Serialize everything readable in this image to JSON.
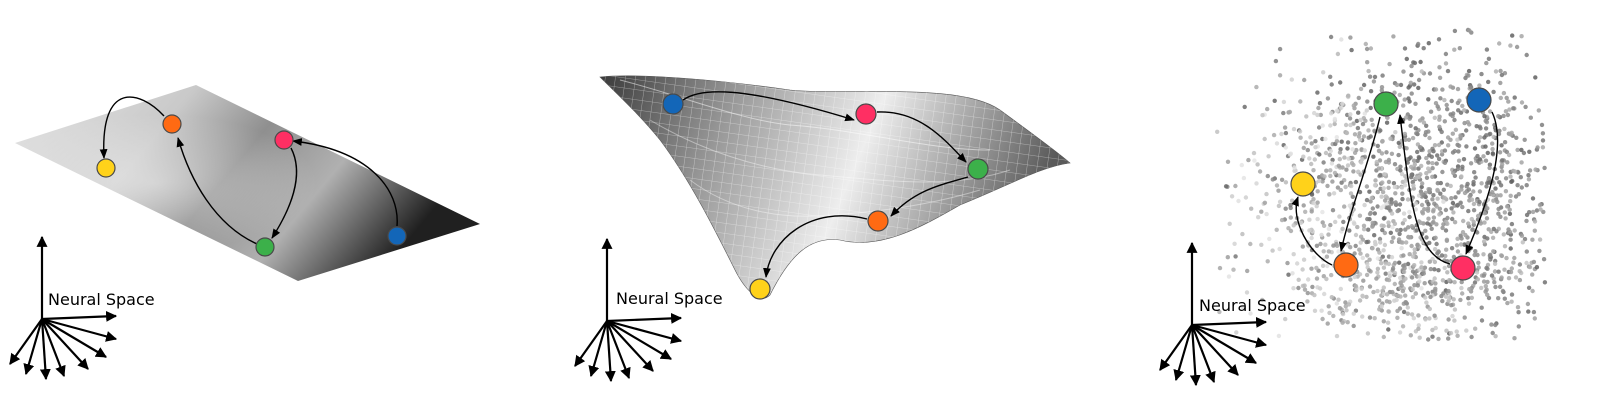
{
  "panels": [
    {
      "id": "plane",
      "axis_label": "Neural Space",
      "states": [
        {
          "name": "orange",
          "color": "#ff6a13"
        },
        {
          "name": "yellow",
          "color": "#ffd21a"
        },
        {
          "name": "pink",
          "color": "#ff2f63"
        },
        {
          "name": "green",
          "color": "#3cb04a"
        },
        {
          "name": "blue",
          "color": "#1366b8"
        }
      ],
      "transitions": [
        [
          "blue",
          "pink"
        ],
        [
          "pink",
          "green"
        ],
        [
          "green",
          "orange"
        ],
        [
          "orange",
          "yellow"
        ]
      ]
    },
    {
      "id": "landscape",
      "axis_label": "Neural Space",
      "states": [
        {
          "name": "blue",
          "color": "#1366b8"
        },
        {
          "name": "pink",
          "color": "#ff2f63"
        },
        {
          "name": "green",
          "color": "#3cb04a"
        },
        {
          "name": "orange",
          "color": "#ff6a13"
        },
        {
          "name": "yellow",
          "color": "#ffd21a"
        }
      ],
      "transitions": [
        [
          "blue",
          "pink"
        ],
        [
          "pink",
          "green"
        ],
        [
          "green",
          "orange"
        ],
        [
          "orange",
          "yellow"
        ]
      ]
    },
    {
      "id": "cloud",
      "axis_label": "Neural Space",
      "states": [
        {
          "name": "green",
          "color": "#3cb04a"
        },
        {
          "name": "blue",
          "color": "#1366b8"
        },
        {
          "name": "yellow",
          "color": "#ffd21a"
        },
        {
          "name": "orange",
          "color": "#ff6a13"
        },
        {
          "name": "pink",
          "color": "#ff2f63"
        }
      ],
      "transitions": [
        [
          "blue",
          "pink"
        ],
        [
          "pink",
          "green"
        ],
        [
          "green",
          "orange"
        ],
        [
          "orange",
          "yellow"
        ]
      ]
    }
  ]
}
